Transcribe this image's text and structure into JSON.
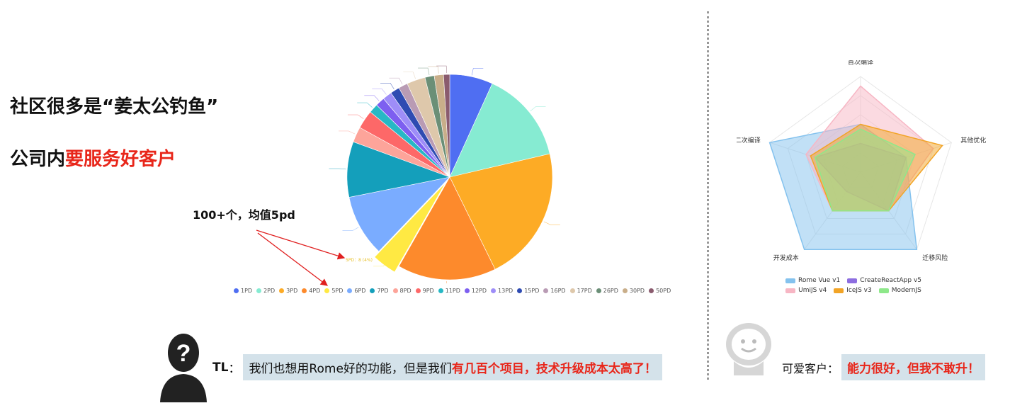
{
  "left": {
    "heading1": "社区很多是“姜太公钓鱼”",
    "heading2_prefix": "公司内",
    "heading2_highlight": "要服务好客户",
    "annotation": "100+个，均值5pd",
    "pie_callout": "5PD：8 (4%)"
  },
  "bottom_left": {
    "speaker": "TL",
    "colon": "：",
    "text": "我们也想用Rome好的功能，但是我们",
    "highlight": "有几百个项目，技术升级成本太高了！"
  },
  "bottom_right": {
    "speaker": "可爱客户：",
    "highlight": "能力很好，但我不敢升！"
  },
  "chart_data": [
    {
      "type": "pie",
      "categories": [
        "1PD",
        "2PD",
        "3PD",
        "4PD",
        "5PD",
        "6PD",
        "7PD",
        "8PD",
        "9PD",
        "11PD",
        "12PD",
        "13PD",
        "15PD",
        "16PD",
        "17PD",
        "26PD",
        "30PD",
        "50PD"
      ],
      "values": [
        14,
        30,
        44,
        32,
        8,
        20,
        18,
        5,
        6,
        3,
        3,
        3,
        3,
        3,
        6,
        3,
        3,
        2
      ],
      "colors": [
        "#4f6ef2",
        "#86ebd2",
        "#fdab25",
        "#fd8a2c",
        "#ffe943",
        "#7aacff",
        "#149fbb",
        "#fda49a",
        "#fd6868",
        "#27b8c5",
        "#7d5ff0",
        "#9e8df8",
        "#2e4bb2",
        "#b99bb4",
        "#dec8ab",
        "#6b8f77",
        "#c9ae8a",
        "#8a5b6e"
      ],
      "exploded": "5PD",
      "legend_position": "bottom"
    },
    {
      "type": "radar",
      "axes": [
        "首次编译",
        "其他优化",
        "迁移风险",
        "开发成本",
        "二次编译"
      ],
      "max": 10,
      "series": [
        {
          "name": "Rome Vue v1",
          "values": [
            5,
            5,
            10,
            10,
            10
          ],
          "color": "#84c2ee"
        },
        {
          "name": "CreateReactApp v5",
          "values": [
            3,
            5,
            5,
            2.5,
            5
          ],
          "color": "#8d6ee0"
        },
        {
          "name": "UmiJS v4",
          "values": [
            9,
            8,
            5,
            5,
            6
          ],
          "color": "#f7b6c4"
        },
        {
          "name": "IceJS v3",
          "values": [
            5,
            9,
            5,
            5,
            5.5
          ],
          "color": "#f2a426"
        },
        {
          "name": "ModernJS",
          "values": [
            4.5,
            6,
            5,
            5,
            5
          ],
          "color": "#8ee88a"
        }
      ],
      "legend_position": "bottom"
    }
  ]
}
